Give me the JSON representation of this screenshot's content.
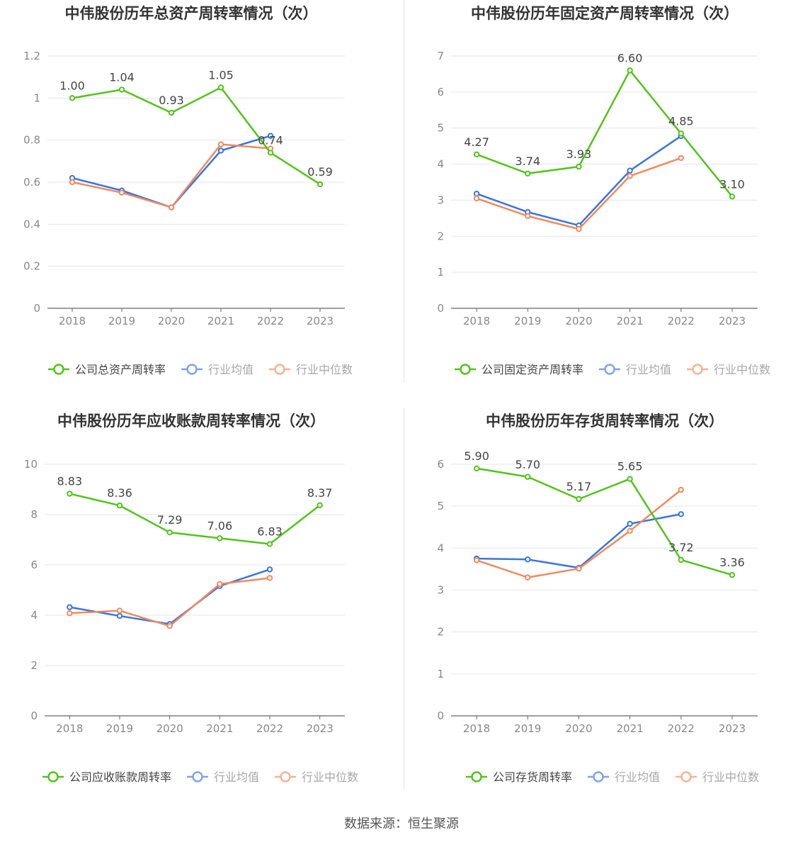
{
  "source": "数据来源：恒生聚源",
  "colors": {
    "company": "#52c41a",
    "avg": "#3a75e0",
    "median": "#f08a5d",
    "grid": "#e3e6ee",
    "axis": "#666666",
    "tick": "#888888",
    "title": "#333333"
  },
  "chart_data": [
    {
      "type": "line",
      "title": "中伟股份历年总资产周转率情况（次）",
      "categories": [
        "2018",
        "2019",
        "2020",
        "2021",
        "2022",
        "2023"
      ],
      "ylim": [
        0,
        1.2
      ],
      "yticks": [
        "0",
        "0.2",
        "0.4",
        "0.6",
        "0.8",
        "1",
        "1.2"
      ],
      "legend_position": "bottom",
      "series": [
        {
          "name": "公司总资产周转率",
          "key": "company",
          "values": [
            1.0,
            1.04,
            0.93,
            1.05,
            0.74,
            0.59
          ],
          "labels": [
            "1.00",
            "1.04",
            "0.93",
            "1.05",
            "0.74",
            "0.59"
          ]
        },
        {
          "name": "行业均值",
          "key": "avg",
          "values": [
            0.62,
            0.56,
            0.48,
            0.75,
            0.82,
            null
          ]
        },
        {
          "name": "行业中位数",
          "key": "median",
          "values": [
            0.6,
            0.55,
            0.48,
            0.78,
            0.76,
            null
          ]
        }
      ]
    },
    {
      "type": "line",
      "title": "中伟股份历年固定资产周转率情况（次）",
      "categories": [
        "2018",
        "2019",
        "2020",
        "2021",
        "2022",
        "2023"
      ],
      "ylim": [
        0,
        7
      ],
      "yticks": [
        "0",
        "1",
        "2",
        "3",
        "4",
        "5",
        "6",
        "7"
      ],
      "legend_position": "bottom",
      "series": [
        {
          "name": "公司固定资产周转率",
          "key": "company",
          "values": [
            4.27,
            3.74,
            3.93,
            6.6,
            4.85,
            3.1
          ],
          "labels": [
            "4.27",
            "3.74",
            "3.93",
            "6.60",
            "4.85",
            "3.10"
          ]
        },
        {
          "name": "行业均值",
          "key": "avg",
          "values": [
            3.18,
            2.67,
            2.3,
            3.82,
            4.78,
            null
          ]
        },
        {
          "name": "行业中位数",
          "key": "median",
          "values": [
            3.05,
            2.56,
            2.2,
            3.67,
            4.17,
            null
          ]
        }
      ]
    },
    {
      "type": "line",
      "title": "中伟股份历年应收账款周转率情况（次）",
      "categories": [
        "2018",
        "2019",
        "2020",
        "2021",
        "2022",
        "2023"
      ],
      "ylim": [
        0,
        10
      ],
      "yticks": [
        "0",
        "2",
        "4",
        "6",
        "8",
        "10"
      ],
      "legend_position": "bottom",
      "series": [
        {
          "name": "公司应收账款周转率",
          "key": "company",
          "values": [
            8.83,
            8.36,
            7.29,
            7.06,
            6.83,
            8.37
          ],
          "labels": [
            "8.83",
            "8.36",
            "7.29",
            "7.06",
            "6.83",
            "8.37"
          ]
        },
        {
          "name": "行业均值",
          "key": "avg",
          "values": [
            4.32,
            3.97,
            3.65,
            5.16,
            5.82,
            null
          ]
        },
        {
          "name": "行业中位数",
          "key": "median",
          "values": [
            4.08,
            4.18,
            3.57,
            5.24,
            5.48,
            null
          ]
        }
      ]
    },
    {
      "type": "line",
      "title": "中伟股份历年存货周转率情况（次）",
      "categories": [
        "2018",
        "2019",
        "2020",
        "2021",
        "2022",
        "2023"
      ],
      "ylim": [
        0,
        6
      ],
      "yticks": [
        "0",
        "1",
        "2",
        "3",
        "4",
        "5",
        "6"
      ],
      "legend_position": "bottom",
      "series": [
        {
          "name": "公司存货周转率",
          "key": "company",
          "values": [
            5.9,
            5.7,
            5.17,
            5.65,
            3.72,
            3.36
          ],
          "labels": [
            "5.90",
            "5.70",
            "5.17",
            "5.65",
            "3.72",
            "3.36"
          ]
        },
        {
          "name": "行业均值",
          "key": "avg",
          "values": [
            3.75,
            3.73,
            3.53,
            4.58,
            4.81,
            null
          ]
        },
        {
          "name": "行业中位数",
          "key": "median",
          "values": [
            3.71,
            3.3,
            3.51,
            4.41,
            5.39,
            null
          ]
        }
      ]
    }
  ]
}
